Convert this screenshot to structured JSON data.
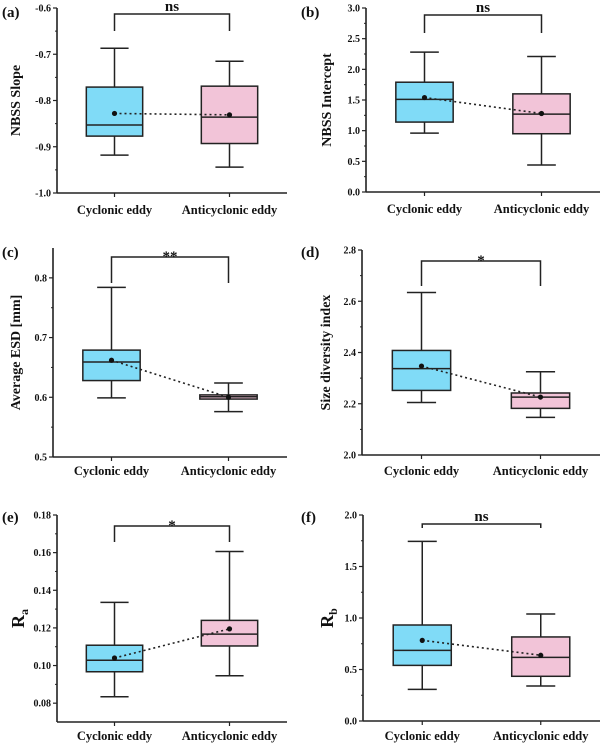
{
  "colors": {
    "cyclonic": "#80dbf7",
    "anticyclonic": "#f2c4d8",
    "line": "#222222"
  },
  "chart_data": [
    {
      "type": "box",
      "panel": "(a)",
      "ylabel": "NBSS Slope",
      "ylabel_sub": "",
      "ylim": [
        -1.0,
        -0.6
      ],
      "yticks": [
        -1.0,
        -0.9,
        -0.8,
        -0.7,
        -0.6
      ],
      "ytick_labels": [
        "-1.0",
        "-0.9",
        "-0.8",
        "-0.7",
        "-0.6"
      ],
      "categories": [
        "Cyclonic eddy",
        "Anticyclonic eddy"
      ],
      "boxes": [
        {
          "min": -0.918,
          "q1": -0.877,
          "median": -0.853,
          "q3": -0.771,
          "max": -0.687,
          "mean": -0.828
        },
        {
          "min": -0.944,
          "q1": -0.893,
          "median": -0.836,
          "q3": -0.769,
          "max": -0.715,
          "mean": -0.831
        }
      ],
      "significance": "ns"
    },
    {
      "type": "box",
      "panel": "(b)",
      "ylabel": "NBSS Intercept",
      "ylabel_sub": "",
      "ylim": [
        0,
        3.0
      ],
      "yticks": [
        0,
        0.5,
        1.0,
        1.5,
        2.0,
        2.5,
        3.0
      ],
      "ytick_labels": [
        "0.0",
        "0.5",
        "1.0",
        "1.5",
        "2.0",
        "2.5",
        "3.0"
      ],
      "categories": [
        "Cyclonic eddy",
        "Anticyclonic eddy"
      ],
      "boxes": [
        {
          "min": 0.96,
          "q1": 1.14,
          "median": 1.51,
          "q3": 1.79,
          "max": 2.28,
          "mean": 1.54
        },
        {
          "min": 0.44,
          "q1": 0.95,
          "median": 1.27,
          "q3": 1.6,
          "max": 2.21,
          "mean": 1.28
        }
      ],
      "significance": "ns"
    },
    {
      "type": "box",
      "panel": "(c)",
      "ylabel": "Average ESD  [mm]",
      "ylabel_sub": "",
      "ylim": [
        0.5,
        0.85
      ],
      "yticks": [
        0.5,
        0.6,
        0.7,
        0.8
      ],
      "ytick_labels": [
        "0.5",
        "0.6",
        "0.7",
        "0.8"
      ],
      "categories": [
        "Cyclonic eddy",
        "Anticyclonic eddy"
      ],
      "boxes": [
        {
          "min": 0.599,
          "q1": 0.628,
          "median": 0.659,
          "q3": 0.679,
          "max": 0.784,
          "mean": 0.662
        },
        {
          "min": 0.576,
          "q1": 0.597,
          "median": 0.601,
          "q3": 0.604,
          "max": 0.624,
          "mean": 0.6
        }
      ],
      "significance": "**"
    },
    {
      "type": "box",
      "panel": "(d)",
      "ylabel": "Size diversity index",
      "ylabel_sub": "",
      "ylim": [
        2.0,
        2.8
      ],
      "yticks": [
        2.0,
        2.2,
        2.4,
        2.6,
        2.8
      ],
      "ytick_labels": [
        "2.0",
        "2.2",
        "2.4",
        "2.6",
        "2.8"
      ],
      "categories": [
        "Cyclonic eddy",
        "Anticyclonic eddy"
      ],
      "boxes": [
        {
          "min": 2.205,
          "q1": 2.252,
          "median": 2.337,
          "q3": 2.408,
          "max": 2.634,
          "mean": 2.347
        },
        {
          "min": 2.147,
          "q1": 2.182,
          "median": 2.226,
          "q3": 2.242,
          "max": 2.325,
          "mean": 2.226
        }
      ],
      "significance": "*"
    },
    {
      "type": "box",
      "panel": "(e)",
      "ylabel": "R",
      "ylabel_sub": "a",
      "ylim": [
        0.07,
        0.18
      ],
      "yticks": [
        0.08,
        0.1,
        0.12,
        0.14,
        0.16,
        0.18
      ],
      "ytick_labels": [
        "0.08",
        "0.10",
        "0.12",
        "0.14",
        "0.16",
        "0.18"
      ],
      "categories": [
        "Cyclonic eddy",
        "Anticyclonic eddy"
      ],
      "boxes": [
        {
          "min": 0.0834,
          "q1": 0.0967,
          "median": 0.1028,
          "q3": 0.1108,
          "max": 0.1336,
          "mean": 0.104
        },
        {
          "min": 0.0946,
          "q1": 0.1104,
          "median": 0.1167,
          "q3": 0.124,
          "max": 0.1606,
          "mean": 0.1195
        }
      ],
      "significance": "*"
    },
    {
      "type": "box",
      "panel": "(f)",
      "ylabel": "R",
      "ylabel_sub": "b",
      "ylim": [
        0,
        2.0
      ],
      "yticks": [
        0,
        0.5,
        1.0,
        1.5,
        2.0
      ],
      "ytick_labels": [
        "0.0",
        "0.5",
        "1.0",
        "1.5",
        "2.0"
      ],
      "categories": [
        "Cyclonic eddy",
        "Anticyclonic eddy"
      ],
      "boxes": [
        {
          "min": 0.307,
          "q1": 0.54,
          "median": 0.686,
          "q3": 0.932,
          "max": 1.744,
          "mean": 0.783
        },
        {
          "min": 0.34,
          "q1": 0.434,
          "median": 0.618,
          "q3": 0.816,
          "max": 1.039,
          "mean": 0.638
        }
      ],
      "significance": "ns"
    }
  ]
}
